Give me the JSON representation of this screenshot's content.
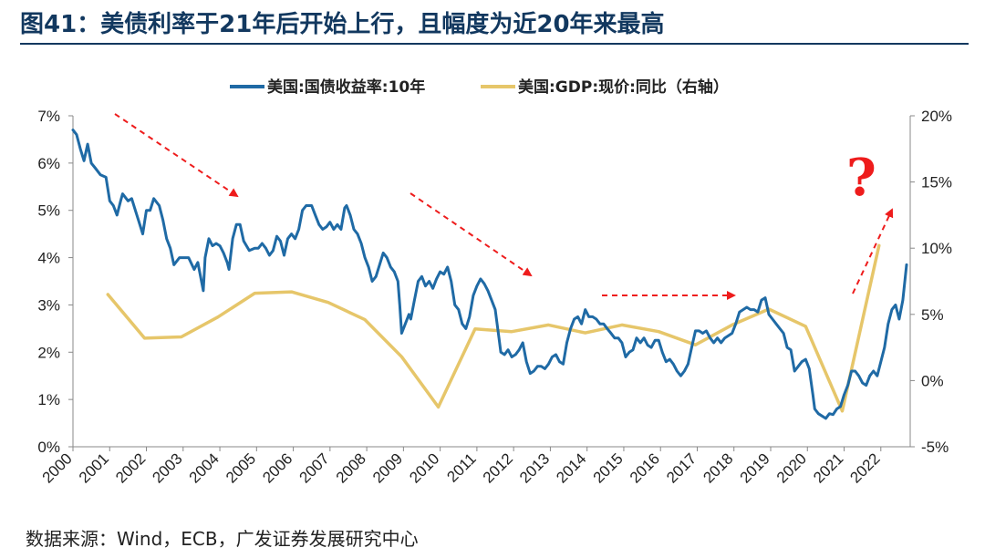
{
  "title": "图41：美债利率于21年后开始上行，且幅度为近20年来最高",
  "source": "数据来源：Wind，ECB，广发证券发展研究中心",
  "chart_data": {
    "type": "line",
    "x_ticks": [
      "2000",
      "2001",
      "2002",
      "2003",
      "2004",
      "2005",
      "2006",
      "2007",
      "2008",
      "2009",
      "2010",
      "2011",
      "2012",
      "2013",
      "2014",
      "2015",
      "2016",
      "2017",
      "2018",
      "2019",
      "2020",
      "2021",
      "2022"
    ],
    "y_left_ticks": [
      "0%",
      "1%",
      "2%",
      "3%",
      "4%",
      "5%",
      "6%",
      "7%"
    ],
    "y_right_ticks": [
      "-5%",
      "0%",
      "5%",
      "10%",
      "15%",
      "20%"
    ],
    "ylim_left": [
      0,
      7
    ],
    "ylim_right": [
      -5,
      20
    ],
    "xlim": [
      2000,
      2022.8
    ],
    "colors": {
      "yield": "#1f6aa5",
      "gdp": "#e6c66a",
      "annotation": "#ee1c1c",
      "title": "#12385f"
    },
    "series": [
      {
        "name": "美国:国债收益率:10年",
        "axis": "left",
        "points": [
          [
            2000.0,
            6.7
          ],
          [
            2000.1,
            6.6
          ],
          [
            2000.2,
            6.3
          ],
          [
            2000.3,
            6.05
          ],
          [
            2000.4,
            6.4
          ],
          [
            2000.5,
            6.0
          ],
          [
            2000.6,
            5.9
          ],
          [
            2000.75,
            5.75
          ],
          [
            2000.9,
            5.7
          ],
          [
            2001.0,
            5.2
          ],
          [
            2001.1,
            5.1
          ],
          [
            2001.2,
            4.9
          ],
          [
            2001.3,
            5.2
          ],
          [
            2001.35,
            5.35
          ],
          [
            2001.5,
            5.2
          ],
          [
            2001.6,
            5.25
          ],
          [
            2001.7,
            5.0
          ],
          [
            2001.8,
            4.75
          ],
          [
            2001.9,
            4.5
          ],
          [
            2002.0,
            5.0
          ],
          [
            2002.1,
            5.0
          ],
          [
            2002.2,
            5.25
          ],
          [
            2002.35,
            5.1
          ],
          [
            2002.45,
            4.8
          ],
          [
            2002.55,
            4.4
          ],
          [
            2002.65,
            4.2
          ],
          [
            2002.75,
            3.85
          ],
          [
            2002.9,
            4.0
          ],
          [
            2003.0,
            4.0
          ],
          [
            2003.15,
            4.0
          ],
          [
            2003.3,
            3.75
          ],
          [
            2003.4,
            3.9
          ],
          [
            2003.5,
            3.5
          ],
          [
            2003.55,
            3.3
          ],
          [
            2003.6,
            4.0
          ],
          [
            2003.7,
            4.4
          ],
          [
            2003.8,
            4.25
          ],
          [
            2003.9,
            4.3
          ],
          [
            2004.0,
            4.25
          ],
          [
            2004.1,
            4.1
          ],
          [
            2004.2,
            3.9
          ],
          [
            2004.25,
            3.75
          ],
          [
            2004.35,
            4.4
          ],
          [
            2004.45,
            4.7
          ],
          [
            2004.55,
            4.7
          ],
          [
            2004.65,
            4.35
          ],
          [
            2004.8,
            4.15
          ],
          [
            2004.95,
            4.2
          ],
          [
            2005.05,
            4.2
          ],
          [
            2005.15,
            4.3
          ],
          [
            2005.25,
            4.2
          ],
          [
            2005.35,
            4.05
          ],
          [
            2005.45,
            4.15
          ],
          [
            2005.55,
            4.45
          ],
          [
            2005.65,
            4.35
          ],
          [
            2005.75,
            4.05
          ],
          [
            2005.85,
            4.4
          ],
          [
            2005.95,
            4.5
          ],
          [
            2006.05,
            4.4
          ],
          [
            2006.15,
            4.6
          ],
          [
            2006.25,
            5.0
          ],
          [
            2006.35,
            5.1
          ],
          [
            2006.5,
            5.1
          ],
          [
            2006.6,
            4.9
          ],
          [
            2006.7,
            4.7
          ],
          [
            2006.8,
            4.6
          ],
          [
            2006.9,
            4.65
          ],
          [
            2007.0,
            4.75
          ],
          [
            2007.1,
            4.6
          ],
          [
            2007.2,
            4.7
          ],
          [
            2007.3,
            4.6
          ],
          [
            2007.4,
            5.05
          ],
          [
            2007.45,
            5.1
          ],
          [
            2007.55,
            4.9
          ],
          [
            2007.65,
            4.6
          ],
          [
            2007.75,
            4.5
          ],
          [
            2007.85,
            4.3
          ],
          [
            2007.95,
            4.0
          ],
          [
            2008.05,
            3.8
          ],
          [
            2008.15,
            3.5
          ],
          [
            2008.25,
            3.6
          ],
          [
            2008.35,
            3.85
          ],
          [
            2008.45,
            4.1
          ],
          [
            2008.55,
            4.0
          ],
          [
            2008.65,
            3.8
          ],
          [
            2008.75,
            3.7
          ],
          [
            2008.85,
            3.5
          ],
          [
            2008.9,
            3.0
          ],
          [
            2008.95,
            2.4
          ],
          [
            2009.05,
            2.6
          ],
          [
            2009.15,
            2.8
          ],
          [
            2009.2,
            2.7
          ],
          [
            2009.3,
            3.1
          ],
          [
            2009.4,
            3.5
          ],
          [
            2009.5,
            3.6
          ],
          [
            2009.6,
            3.4
          ],
          [
            2009.7,
            3.5
          ],
          [
            2009.8,
            3.35
          ],
          [
            2009.9,
            3.55
          ],
          [
            2010.0,
            3.7
          ],
          [
            2010.1,
            3.65
          ],
          [
            2010.2,
            3.8
          ],
          [
            2010.3,
            3.5
          ],
          [
            2010.4,
            3.0
          ],
          [
            2010.5,
            2.9
          ],
          [
            2010.6,
            2.6
          ],
          [
            2010.7,
            2.5
          ],
          [
            2010.8,
            2.75
          ],
          [
            2010.9,
            3.2
          ],
          [
            2011.0,
            3.4
          ],
          [
            2011.1,
            3.55
          ],
          [
            2011.2,
            3.45
          ],
          [
            2011.3,
            3.3
          ],
          [
            2011.4,
            3.1
          ],
          [
            2011.5,
            2.9
          ],
          [
            2011.6,
            2.3
          ],
          [
            2011.65,
            2.0
          ],
          [
            2011.75,
            1.95
          ],
          [
            2011.85,
            2.05
          ],
          [
            2011.95,
            1.9
          ],
          [
            2012.05,
            1.95
          ],
          [
            2012.15,
            2.05
          ],
          [
            2012.25,
            2.2
          ],
          [
            2012.35,
            1.8
          ],
          [
            2012.45,
            1.55
          ],
          [
            2012.55,
            1.6
          ],
          [
            2012.65,
            1.7
          ],
          [
            2012.75,
            1.7
          ],
          [
            2012.85,
            1.65
          ],
          [
            2012.95,
            1.75
          ],
          [
            2013.05,
            1.9
          ],
          [
            2013.15,
            1.95
          ],
          [
            2013.25,
            1.8
          ],
          [
            2013.35,
            1.75
          ],
          [
            2013.45,
            2.2
          ],
          [
            2013.55,
            2.5
          ],
          [
            2013.65,
            2.7
          ],
          [
            2013.75,
            2.75
          ],
          [
            2013.85,
            2.6
          ],
          [
            2013.95,
            2.9
          ],
          [
            2014.05,
            2.75
          ],
          [
            2014.15,
            2.75
          ],
          [
            2014.25,
            2.7
          ],
          [
            2014.35,
            2.6
          ],
          [
            2014.45,
            2.6
          ],
          [
            2014.55,
            2.5
          ],
          [
            2014.65,
            2.4
          ],
          [
            2014.75,
            2.3
          ],
          [
            2014.85,
            2.3
          ],
          [
            2014.95,
            2.2
          ],
          [
            2015.05,
            1.9
          ],
          [
            2015.15,
            2.0
          ],
          [
            2015.25,
            2.05
          ],
          [
            2015.35,
            2.3
          ],
          [
            2015.45,
            2.2
          ],
          [
            2015.55,
            2.3
          ],
          [
            2015.65,
            2.15
          ],
          [
            2015.75,
            2.1
          ],
          [
            2015.85,
            2.25
          ],
          [
            2015.95,
            2.25
          ],
          [
            2016.05,
            2.0
          ],
          [
            2016.15,
            1.8
          ],
          [
            2016.25,
            1.85
          ],
          [
            2016.35,
            1.75
          ],
          [
            2016.45,
            1.6
          ],
          [
            2016.55,
            1.5
          ],
          [
            2016.65,
            1.6
          ],
          [
            2016.75,
            1.75
          ],
          [
            2016.85,
            2.1
          ],
          [
            2016.95,
            2.45
          ],
          [
            2017.05,
            2.45
          ],
          [
            2017.15,
            2.4
          ],
          [
            2017.25,
            2.45
          ],
          [
            2017.35,
            2.3
          ],
          [
            2017.45,
            2.2
          ],
          [
            2017.55,
            2.3
          ],
          [
            2017.65,
            2.2
          ],
          [
            2017.75,
            2.3
          ],
          [
            2017.85,
            2.35
          ],
          [
            2017.95,
            2.4
          ],
          [
            2018.05,
            2.6
          ],
          [
            2018.15,
            2.85
          ],
          [
            2018.25,
            2.9
          ],
          [
            2018.35,
            2.95
          ],
          [
            2018.45,
            2.9
          ],
          [
            2018.55,
            2.9
          ],
          [
            2018.65,
            2.85
          ],
          [
            2018.75,
            3.1
          ],
          [
            2018.85,
            3.15
          ],
          [
            2018.95,
            2.8
          ],
          [
            2019.05,
            2.7
          ],
          [
            2019.15,
            2.6
          ],
          [
            2019.25,
            2.5
          ],
          [
            2019.35,
            2.4
          ],
          [
            2019.45,
            2.1
          ],
          [
            2019.55,
            2.05
          ],
          [
            2019.65,
            1.6
          ],
          [
            2019.75,
            1.7
          ],
          [
            2019.85,
            1.8
          ],
          [
            2019.95,
            1.85
          ],
          [
            2020.05,
            1.65
          ],
          [
            2020.15,
            1.1
          ],
          [
            2020.2,
            0.8
          ],
          [
            2020.3,
            0.7
          ],
          [
            2020.4,
            0.65
          ],
          [
            2020.5,
            0.6
          ],
          [
            2020.6,
            0.7
          ],
          [
            2020.7,
            0.68
          ],
          [
            2020.8,
            0.8
          ],
          [
            2020.9,
            0.85
          ],
          [
            2021.0,
            1.1
          ],
          [
            2021.1,
            1.3
          ],
          [
            2021.2,
            1.6
          ],
          [
            2021.3,
            1.6
          ],
          [
            2021.4,
            1.5
          ],
          [
            2021.5,
            1.35
          ],
          [
            2021.6,
            1.3
          ],
          [
            2021.7,
            1.5
          ],
          [
            2021.8,
            1.6
          ],
          [
            2021.9,
            1.5
          ],
          [
            2022.0,
            1.8
          ],
          [
            2022.1,
            2.1
          ],
          [
            2022.2,
            2.6
          ],
          [
            2022.3,
            2.9
          ],
          [
            2022.4,
            3.0
          ],
          [
            2022.5,
            2.7
          ],
          [
            2022.6,
            3.1
          ],
          [
            2022.7,
            3.85
          ]
        ]
      },
      {
        "name": "美国:GDP:现价:同比（右轴）",
        "axis": "right",
        "points": [
          [
            2000.95,
            6.5
          ],
          [
            2001.95,
            3.2
          ],
          [
            2002.95,
            3.3
          ],
          [
            2003.95,
            4.8
          ],
          [
            2004.95,
            6.6
          ],
          [
            2005.95,
            6.7
          ],
          [
            2006.95,
            5.9
          ],
          [
            2007.95,
            4.6
          ],
          [
            2008.95,
            1.8
          ],
          [
            2009.95,
            -2.0
          ],
          [
            2010.95,
            3.9
          ],
          [
            2011.95,
            3.7
          ],
          [
            2012.95,
            4.2
          ],
          [
            2013.95,
            3.6
          ],
          [
            2014.95,
            4.2
          ],
          [
            2015.95,
            3.7
          ],
          [
            2016.95,
            2.7
          ],
          [
            2017.95,
            4.2
          ],
          [
            2018.95,
            5.4
          ],
          [
            2019.95,
            4.1
          ],
          [
            2020.95,
            -2.3
          ],
          [
            2021.95,
            10.2
          ]
        ]
      }
    ],
    "annotations": [
      "?"
    ]
  }
}
